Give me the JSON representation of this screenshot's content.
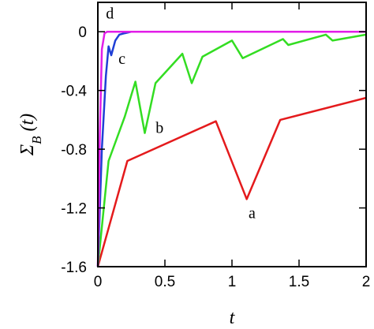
{
  "chart_data": {
    "type": "line",
    "xlabel": "t",
    "ylabel": "Σ_B (t)",
    "ylabel_main": "Σ",
    "ylabel_sub": "B",
    "ylabel_arg": "(t)",
    "xlim": [
      0,
      2
    ],
    "ylim": [
      -1.6,
      0.2
    ],
    "grid": false,
    "legend": "none",
    "x_ticks": [
      {
        "value": 0,
        "label": "0"
      },
      {
        "value": 0.5,
        "label": "0.5"
      },
      {
        "value": 1,
        "label": "1"
      },
      {
        "value": 1.5,
        "label": "1.5"
      },
      {
        "value": 2,
        "label": "2"
      }
    ],
    "y_ticks": [
      {
        "value": 0,
        "label": "0"
      },
      {
        "value": -0.4,
        "label": "-0.4"
      },
      {
        "value": -0.8,
        "label": "-0.8"
      },
      {
        "value": -1.2,
        "label": "-1.2"
      },
      {
        "value": -1.6,
        "label": "-1.6"
      }
    ],
    "series": [
      {
        "label": "a",
        "color": "#e41a1c",
        "label_pos": {
          "x": 1.15,
          "y": -1.27
        },
        "x": [
          0,
          0.22,
          0.88,
          1.11,
          1.36,
          2.0
        ],
        "y": [
          -1.6,
          -0.88,
          -0.61,
          -1.14,
          -0.6,
          -0.45
        ]
      },
      {
        "label": "b",
        "color": "#33dd22",
        "label_pos": {
          "x": 0.46,
          "y": -0.69
        },
        "x": [
          0,
          0.08,
          0.2,
          0.28,
          0.35,
          0.43,
          0.63,
          0.7,
          0.78,
          1.0,
          1.08,
          1.38,
          1.42,
          1.7,
          1.75,
          2.0
        ],
        "y": [
          -1.6,
          -0.88,
          -0.58,
          -0.34,
          -0.69,
          -0.35,
          -0.15,
          -0.35,
          -0.17,
          -0.06,
          -0.18,
          -0.05,
          -0.09,
          -0.02,
          -0.06,
          -0.02
        ]
      },
      {
        "label": "c",
        "color": "#1f3fd6",
        "label_pos": {
          "x": 0.18,
          "y": -0.22
        },
        "x": [
          0,
          0.03,
          0.06,
          0.08,
          0.1,
          0.13,
          0.16,
          0.2,
          0.25,
          0.3
        ],
        "y": [
          -1.6,
          -0.8,
          -0.3,
          -0.1,
          -0.16,
          -0.06,
          -0.02,
          -0.01,
          0,
          0
        ]
      },
      {
        "label": "d",
        "color": "#e21ee8",
        "label_pos": {
          "x": 0.09,
          "y": 0.09
        },
        "x": [
          0,
          0.015,
          0.03,
          0.05,
          0.07,
          2.0
        ],
        "y": [
          -1.6,
          -0.7,
          -0.12,
          -0.01,
          0,
          0
        ]
      }
    ]
  }
}
